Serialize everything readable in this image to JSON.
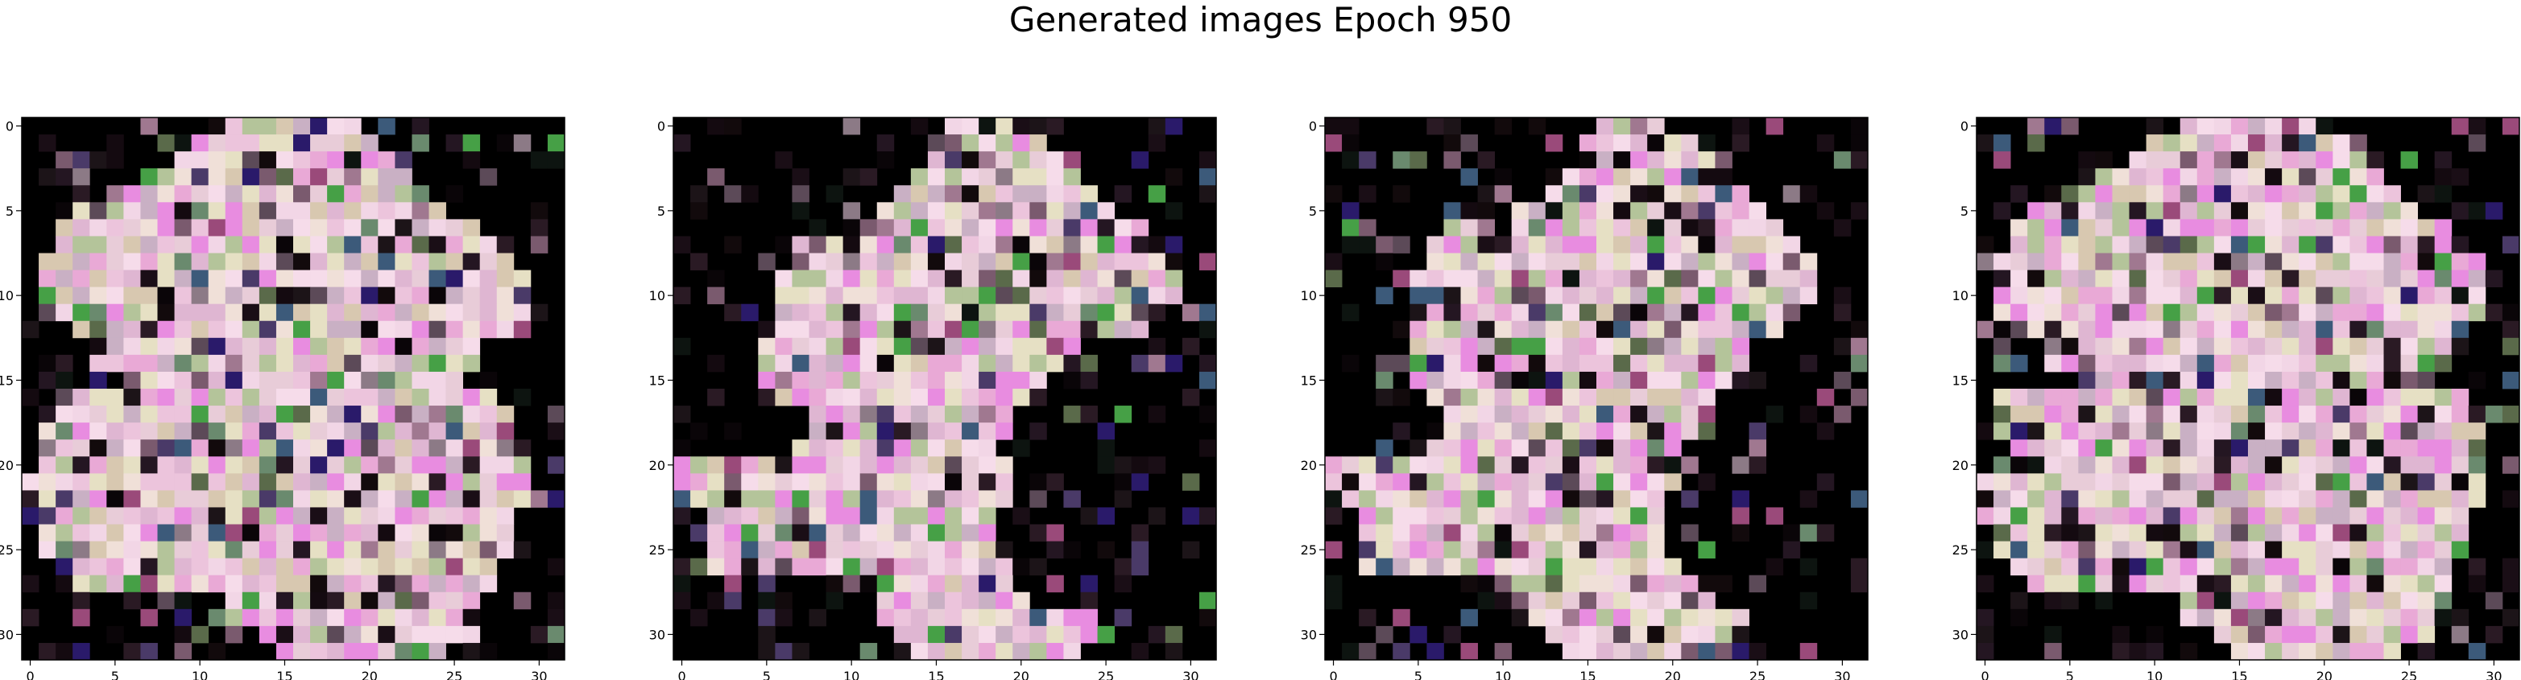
{
  "figure": {
    "title": "Generated images Epoch 950"
  },
  "chart_data": [
    {
      "type": "heatmap",
      "panel": 1,
      "xlim": [
        -0.5,
        31.5
      ],
      "ylim": [
        31.5,
        -0.5
      ],
      "x_ticks": [
        "0",
        "5",
        "10",
        "15",
        "20",
        "25",
        "30"
      ],
      "y_ticks": [
        "0",
        "5",
        "10",
        "15",
        "20",
        "25",
        "30"
      ],
      "mask": [
        "00000000000111111111000000000000",
        "00000000011111111111100000000000",
        "00000000011111111111110000000000",
        "00000001111111111111111000000000",
        "00000111111111111111111100000000",
        "00011111111111111111111110000000",
        "00111111111111111111111111100000",
        "00111111111111111111111111110000",
        "01111111111111111111111111111000",
        "01111111111111111111111111111100",
        "01111111111111111111111111111100",
        "01111111111111111111111111111100",
        "00011111111111111111111111111000",
        "00001111111111111111111111100000",
        "00001111111111111111111111100000",
        "00000011111111111111111111000000",
        "00111111111111111111111111110000",
        "01111111111111111111111111111000",
        "01111111111111111111111111111000",
        "00111111111111111111111111111000",
        "01111111111111111111111111111100",
        "11111111111111111111111111111100",
        "11111111111111111111111111111100",
        "11111111111111111111111111111000",
        "01111111111111111111111111111000",
        "01111111111111111111111111111000",
        "00111111111111111111111111110000",
        "00011111111111111111111111110000",
        "00000000000011111111111111100000",
        "00000000000011111111111111100000",
        "00000000000000111111111111100000",
        "00000000000000011111111110000000"
      ]
    },
    {
      "type": "heatmap",
      "panel": 2,
      "xlim": [
        -0.5,
        31.5
      ],
      "ylim": [
        31.5,
        -0.5
      ],
      "x_ticks": [
        "0",
        "5",
        "10",
        "15",
        "20",
        "25",
        "30"
      ],
      "y_ticks": [
        "0",
        "5",
        "10",
        "15",
        "20",
        "25",
        "30"
      ],
      "mask": [
        "00000000000000001111000000000000",
        "00000000000000011111110000000000",
        "00000000000000011111111000000000",
        "00000000000000111111111100000000",
        "00000000000001111111111110000000",
        "00000000000011111111111111000000",
        "00000000100111111111111111110000",
        "00000001111111111111111111111000",
        "00000001111111111111111111111100",
        "00000011111111111111111111111100",
        "00000011111111111111111111111100",
        "00000011111111111111111111111000",
        "00000011111111111111111111110000",
        "00000111111111111111111100000000",
        "00000111111111111111111100000000",
        "00000111111111111111110000000000",
        "00000011111111111111110000000000",
        "00000000111111111111000000000000",
        "00000000111111111111000000000000",
        "00000001111111111110000000000000",
        "11111111111111111111000000000000",
        "11111111111111111111000000000000",
        "01111111111111111111000000000000",
        "00111111111111111110000000000000",
        "00111111111111111110000000000000",
        "00111111111111111110000000000000",
        "00111111111111111111000000000000",
        "00000000000111111111000000000000",
        "00000000000011111111100000000000",
        "00000000000011111111111110000000",
        "00000000000001111111111110000000",
        "00000000000000111111111100000000"
      ]
    },
    {
      "type": "heatmap",
      "panel": 3,
      "xlim": [
        -0.5,
        31.5
      ],
      "ylim": [
        31.5,
        -0.5
      ],
      "x_ticks": [
        "0",
        "5",
        "10",
        "15",
        "20",
        "25",
        "30"
      ],
      "y_ticks": [
        "0",
        "5",
        "10",
        "15",
        "20",
        "25",
        "30"
      ],
      "mask": [
        "00000000000000001111000000000000",
        "00000000000000011111110000000000",
        "00000000000000011111111000000000",
        "00000000000000111111111100000000",
        "00000000000001111111111110000000",
        "00000000000111111111111111000000",
        "00000001100111111111111111100000",
        "00000011111111111111111111110000",
        "00000011111111111111111111111000",
        "00000111111111111111111111111000",
        "00000111111111111111111111111000",
        "00000111111111111111111111110000",
        "00000111111111111111111111100000",
        "00000111111111111111111110000000",
        "00000111111111111111111110000000",
        "00000111111111111111111100000000",
        "00000011111111111111111000000000",
        "00000001111111111111110000000000",
        "00000001111111111111110000000000",
        "00000011111111111111100000000000",
        "11111111111111111111100000000000",
        "11111111111111111111100000000000",
        "01111111111111111111000000000000",
        "00111111111111111111000000000000",
        "00111111111111111111000000000000",
        "00111111111111111111000000000000",
        "00111111111111111111100000000000",
        "00000000000111111111110000000000",
        "00000000000011111111111000000000",
        "00000000000011111111111110000000",
        "00000000000001111111111110000000",
        "00000000000000111111111100000000"
      ]
    },
    {
      "type": "heatmap",
      "panel": 4,
      "xlim": [
        -0.5,
        31.5
      ],
      "ylim": [
        31.5,
        -0.5
      ],
      "x_ticks": [
        "0",
        "5",
        "10",
        "15",
        "20",
        "25",
        "30"
      ],
      "y_ticks": [
        "0",
        "5",
        "10",
        "15",
        "20",
        "25",
        "30"
      ],
      "mask": [
        "00000000000011111111000000000000",
        "00000000001111111111110000000000",
        "00000000011111111111111000000000",
        "00000001111111111111111100000000",
        "00000111111111111111111110000000",
        "00011111111111111111111111000000",
        "00111111111111111111111111110000",
        "00111111111111111111111111111000",
        "01111111111111111111111111111100",
        "01111111111111111111111111111100",
        "01111111111111111111111111111100",
        "01111111111111111111111111111100",
        "00011111111111111111111111111000",
        "00001111111111111111111111110000",
        "00001111111111111111111111110000",
        "00000011111111111111111111100000",
        "01111111111111111111111111111000",
        "01111111111111111111111111111100",
        "01111111111111111111111111111100",
        "00111111111111111111111111111100",
        "01111111111111111111111111111100",
        "11111111111111111111111111111100",
        "11111111111111111111111111111100",
        "11111111111111111111111111111000",
        "01111111111111111111111111111000",
        "01111111111111111111111111111000",
        "00111111111111111111111111110000",
        "00011111111111111111111111110000",
        "00000000000011111111111111100000",
        "00000000000011111111111111100000",
        "00000000000000111111111111100000",
        "00000000000000011111111110000000"
      ]
    }
  ],
  "palette": {
    "light": [
      "#f2d6e6",
      "#ecc4dc",
      "#f6dcea",
      "#e9a9d6",
      "#e6e0c4",
      "#d8c8b0",
      "#c9b0c4",
      "#e8ccd8",
      "#dfb6d2",
      "#f0e0d8",
      "#b4c49a",
      "#e88ce0"
    ],
    "dark": [
      "#0a0508",
      "#140a10",
      "#1a0e16",
      "#241622",
      "#0d1410",
      "#1c1418",
      "#2a1a24",
      "#120a0c"
    ],
    "mid": [
      "#7a5a6e",
      "#5c4a58",
      "#8c7a86",
      "#6a8a6e",
      "#4a3a68",
      "#3c5a7a",
      "#a07890",
      "#5a6a4a",
      "#9a4a7a",
      "#2a1a6a",
      "#46a046"
    ]
  }
}
